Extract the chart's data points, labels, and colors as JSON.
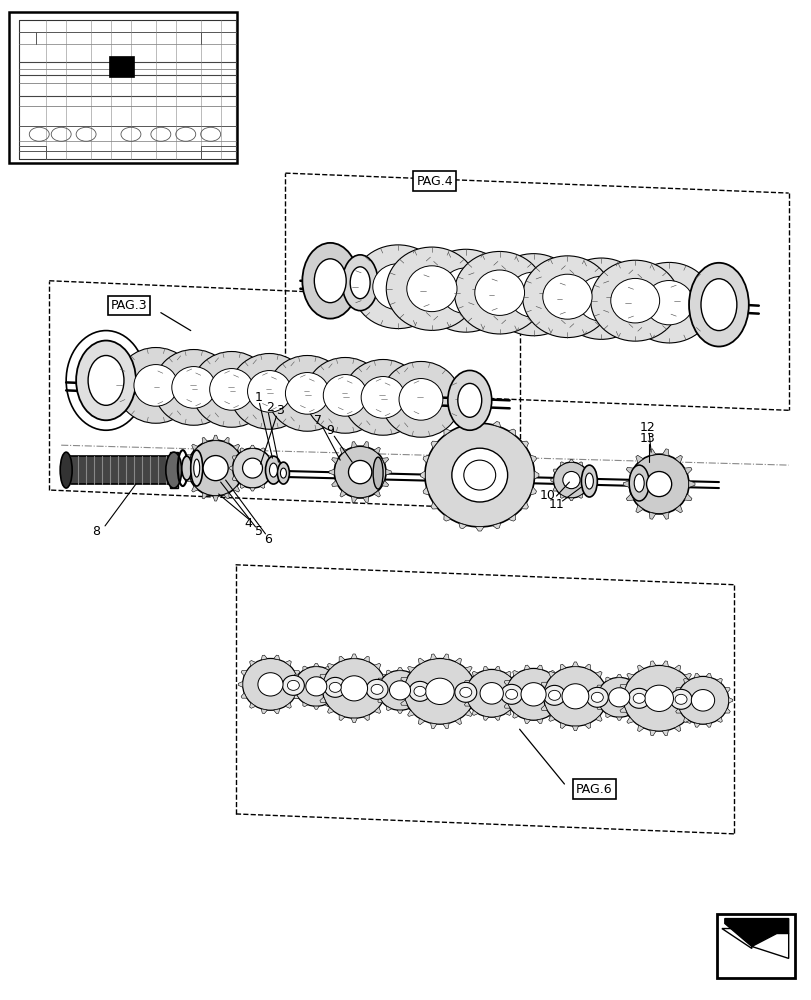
{
  "bg_color": "#ffffff",
  "fig_width": 8.12,
  "fig_height": 10.0,
  "pag_labels": [
    "PAG.3",
    "PAG.4",
    "PAG.6"
  ],
  "part_labels": [
    "1",
    "2",
    "3",
    "4",
    "5",
    "6",
    "7",
    "8",
    "9",
    "10",
    "11",
    "12",
    "13"
  ]
}
